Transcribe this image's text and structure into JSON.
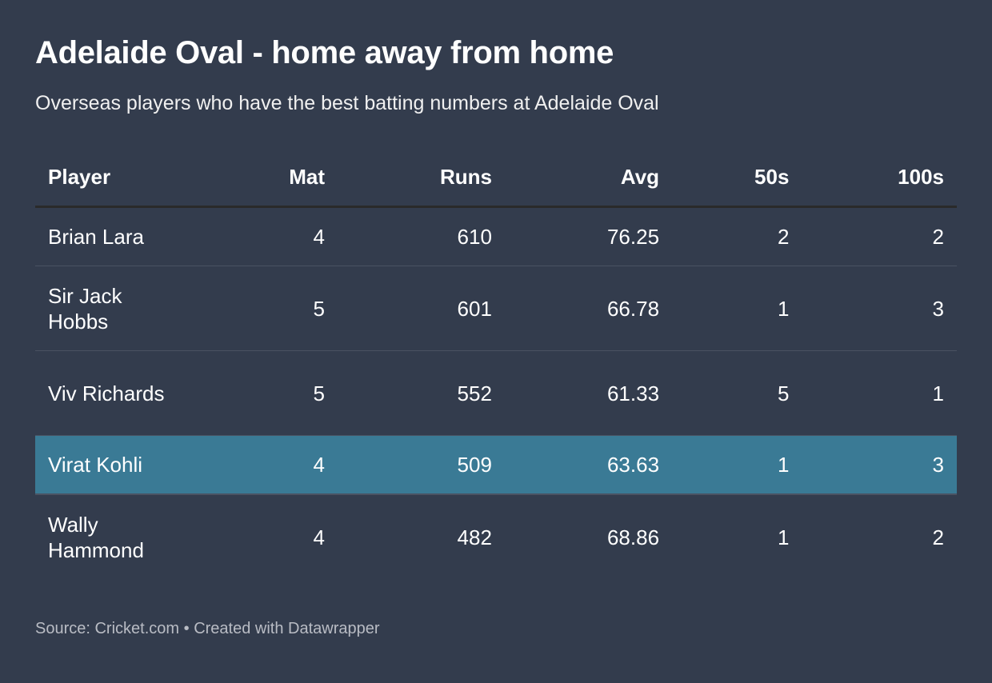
{
  "title": "Adelaide Oval - home away from home",
  "subtitle": "Overseas players who have the best batting numbers at Adelaide Oval",
  "colors": {
    "background": "#333c4d",
    "highlight": "#3a7a95"
  },
  "table": {
    "headers": [
      "Player",
      "Mat",
      "Runs",
      "Avg",
      "50s",
      "100s"
    ],
    "rows": [
      [
        "Brian Lara",
        "4",
        "610",
        "76.25",
        "2",
        "2"
      ],
      [
        "Sir Jack Hobbs",
        "5",
        "601",
        "66.78",
        "1",
        "3"
      ],
      [
        "Viv Richards",
        "5",
        "552",
        "61.33",
        "5",
        "1"
      ],
      [
        "Virat Kohli",
        "4",
        "509",
        "63.63",
        "1",
        "3"
      ],
      [
        "Wally Hammond",
        "4",
        "482",
        "68.86",
        "1",
        "2"
      ]
    ],
    "highlighted_row": "Virat Kohli"
  },
  "footer": {
    "source": "Source: Cricket.com",
    "separator": " • ",
    "credit": "Created with Datawrapper"
  }
}
